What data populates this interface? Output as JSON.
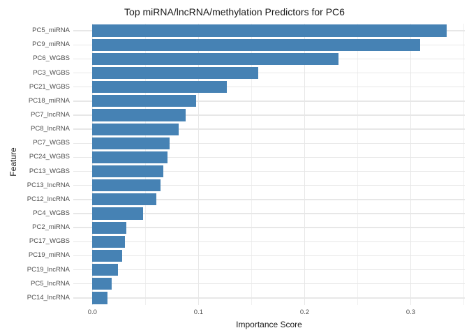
{
  "title": "Top miRNA/lncRNA/methylation Predictors for PC6",
  "colors": {
    "bar": "#4682B4",
    "grid_major": "#e7e7e7",
    "grid_minor": "#f0f0f0",
    "title_text": "#1a1a1a",
    "axis_title_text": "#1a1a1a",
    "tick_text": "#4d4d4d",
    "background": "#ffffff"
  },
  "chart_data": {
    "type": "bar",
    "orientation": "horizontal",
    "title": "Top miRNA/lncRNA/methylation Predictors for PC6",
    "xlabel": "Importance Score",
    "ylabel": "Feature",
    "categories": [
      "PC5_miRNA",
      "PC9_miRNA",
      "PC6_WGBS",
      "PC3_WGBS",
      "PC21_WGBS",
      "PC18_miRNA",
      "PC7_lncRNA",
      "PC8_lncRNA",
      "PC7_WGBS",
      "PC24_WGBS",
      "PC13_WGBS",
      "PC13_lncRNA",
      "PC12_lncRNA",
      "PC4_WGBS",
      "PC2_miRNA",
      "PC17_WGBS",
      "PC19_miRNA",
      "PC19_lncRNA",
      "PC5_lncRNA",
      "PC14_lncRNA"
    ],
    "values": [
      0.334,
      0.309,
      0.232,
      0.156,
      0.127,
      0.098,
      0.088,
      0.081,
      0.073,
      0.071,
      0.067,
      0.064,
      0.06,
      0.048,
      0.032,
      0.031,
      0.028,
      0.024,
      0.018,
      0.014
    ],
    "xlim": [
      -0.018,
      0.351
    ],
    "x_major_ticks": [
      0.0,
      0.1,
      0.2,
      0.3
    ],
    "x_tick_labels": [
      "0.0",
      "0.1",
      "0.2",
      "0.3"
    ],
    "x_minor_ticks": [
      0.05,
      0.15,
      0.25,
      0.35
    ],
    "grid": true,
    "legend": false
  }
}
